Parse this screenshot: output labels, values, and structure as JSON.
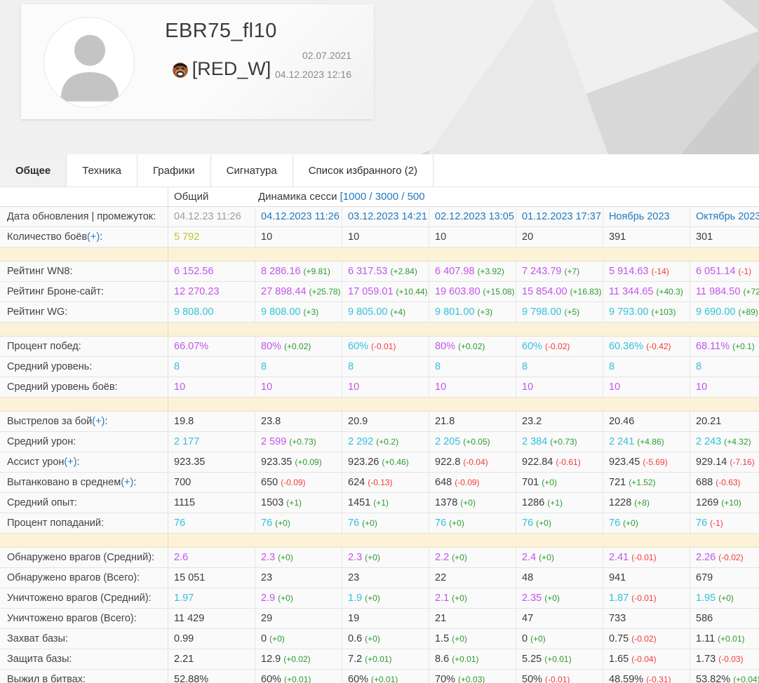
{
  "header": {
    "player_name": "EBR75_fl10",
    "clan_tag": "[RED_W]",
    "clan_emblem_icon": "bear-emblem",
    "registration_date": "02.07.2021",
    "last_update": "04.12.2023 12:16"
  },
  "tabs": [
    {
      "label": "Общее",
      "active": true
    },
    {
      "label": "Техника",
      "active": false
    },
    {
      "label": "Графики",
      "active": false
    },
    {
      "label": "Сигнатура",
      "active": false
    },
    {
      "label": "Список избранного (2)",
      "active": false
    }
  ],
  "table": {
    "overall_label": "Общий",
    "dynamics_label": "Динамика сесси",
    "dynamics_range_link": "[1000 / 3000 / 500",
    "plus_link": "(+)",
    "columns": [
      "Общий",
      "04.12.2023 11:26",
      "03.12.2023 14:21",
      "02.12.2023 13:05",
      "01.12.2023 17:37",
      "Ноябрь 2023",
      "Октябрь 2023"
    ],
    "rows": [
      {
        "label": "Дата обновления | промежуток",
        "cells": [
          {
            "v": "04.12.23 11:26",
            "c": "g"
          },
          {
            "v": "04.12.2023 11:26",
            "c": "b",
            "link": true
          },
          {
            "v": "03.12.2023 14:21",
            "c": "b",
            "link": true
          },
          {
            "v": "02.12.2023 13:05",
            "c": "b",
            "link": true
          },
          {
            "v": "01.12.2023 17:37",
            "c": "b",
            "link": true
          },
          {
            "v": "Ноябрь 2023",
            "c": "b",
            "link": true
          },
          {
            "v": "Октябрь 2023",
            "c": "b",
            "link": true
          }
        ]
      },
      {
        "label": "Количество боёв",
        "plus": true,
        "cells": [
          {
            "v": "5 792",
            "c": "y"
          },
          {
            "v": "10",
            "c": "k"
          },
          {
            "v": "10",
            "c": "k"
          },
          {
            "v": "10",
            "c": "k"
          },
          {
            "v": "20",
            "c": "k"
          },
          {
            "v": "391",
            "c": "k"
          },
          {
            "v": "301",
            "c": "k"
          }
        ]
      },
      {
        "type": "spacer"
      },
      {
        "label": "Рейтинг WN8",
        "cells": [
          {
            "v": "6 152.56",
            "c": "p"
          },
          {
            "v": "8 286.16",
            "c": "p",
            "d": "+9.81",
            "t": "up"
          },
          {
            "v": "6 317.53",
            "c": "p",
            "d": "+2.84",
            "t": "up"
          },
          {
            "v": "6 407.98",
            "c": "p",
            "d": "+3.92",
            "t": "up"
          },
          {
            "v": "7 243.79",
            "c": "p",
            "d": "+7",
            "t": "up"
          },
          {
            "v": "5 914.63",
            "c": "p",
            "d": "-14",
            "t": "dn"
          },
          {
            "v": "6 051.14",
            "c": "p",
            "d": "-1",
            "t": "dn"
          }
        ]
      },
      {
        "label": "Рейтинг Броне-сайт",
        "cells": [
          {
            "v": "12 270.23",
            "c": "p"
          },
          {
            "v": "27 898.44",
            "c": "p",
            "d": "+25.78",
            "t": "up"
          },
          {
            "v": "17 059.01",
            "c": "p",
            "d": "+10.44",
            "t": "up"
          },
          {
            "v": "19 603.80",
            "c": "p",
            "d": "+15.08",
            "t": "up"
          },
          {
            "v": "15 854.00",
            "c": "p",
            "d": "+16.83",
            "t": "up"
          },
          {
            "v": "11 344.65",
            "c": "p",
            "d": "+40.3",
            "t": "up"
          },
          {
            "v": "11 984.50",
            "c": "p",
            "d": "+72",
            "t": "up"
          }
        ]
      },
      {
        "label": "Рейтинг WG",
        "cells": [
          {
            "v": "9 808.00",
            "c": "c"
          },
          {
            "v": "9 808.00",
            "c": "c",
            "d": "+3",
            "t": "up"
          },
          {
            "v": "9 805.00",
            "c": "c",
            "d": "+4",
            "t": "up"
          },
          {
            "v": "9 801.00",
            "c": "c",
            "d": "+3",
            "t": "up"
          },
          {
            "v": "9 798.00",
            "c": "c",
            "d": "+5",
            "t": "up"
          },
          {
            "v": "9 793.00",
            "c": "c",
            "d": "+103",
            "t": "up"
          },
          {
            "v": "9 690.00",
            "c": "c",
            "d": "+89",
            "t": "up"
          }
        ]
      },
      {
        "type": "spacer"
      },
      {
        "label": "Процент побед",
        "cells": [
          {
            "v": "66.07%",
            "c": "p"
          },
          {
            "v": "80%",
            "c": "p",
            "d": "+0.02",
            "t": "up"
          },
          {
            "v": "60%",
            "c": "c",
            "d": "-0.01",
            "t": "dn"
          },
          {
            "v": "80%",
            "c": "p",
            "d": "+0.02",
            "t": "up"
          },
          {
            "v": "60%",
            "c": "c",
            "d": "-0.02",
            "t": "dn"
          },
          {
            "v": "60.36%",
            "c": "c",
            "d": "-0.42",
            "t": "dn"
          },
          {
            "v": "68.11%",
            "c": "p",
            "d": "+0.1",
            "t": "up"
          }
        ]
      },
      {
        "label": "Средний уровень",
        "cells": [
          {
            "v": "8",
            "c": "c"
          },
          {
            "v": "8",
            "c": "c"
          },
          {
            "v": "8",
            "c": "c"
          },
          {
            "v": "8",
            "c": "c"
          },
          {
            "v": "8",
            "c": "c"
          },
          {
            "v": "8",
            "c": "c"
          },
          {
            "v": "8",
            "c": "c"
          }
        ]
      },
      {
        "label": "Средний уровень боёв",
        "cells": [
          {
            "v": "10",
            "c": "p"
          },
          {
            "v": "10",
            "c": "p"
          },
          {
            "v": "10",
            "c": "p"
          },
          {
            "v": "10",
            "c": "p"
          },
          {
            "v": "10",
            "c": "p"
          },
          {
            "v": "10",
            "c": "p"
          },
          {
            "v": "10",
            "c": "p"
          }
        ]
      },
      {
        "type": "spacer"
      },
      {
        "label": "Выстрелов за бой",
        "plus": true,
        "cells": [
          {
            "v": "19.8",
            "c": "k"
          },
          {
            "v": "23.8",
            "c": "k"
          },
          {
            "v": "20.9",
            "c": "k"
          },
          {
            "v": "21.8",
            "c": "k"
          },
          {
            "v": "23.2",
            "c": "k"
          },
          {
            "v": "20.46",
            "c": "k"
          },
          {
            "v": "20.21",
            "c": "k"
          }
        ]
      },
      {
        "label": "Средний урон",
        "cells": [
          {
            "v": "2 177",
            "c": "c"
          },
          {
            "v": "2 599",
            "c": "p",
            "d": "+0.73",
            "t": "up"
          },
          {
            "v": "2 292",
            "c": "c",
            "d": "+0.2",
            "t": "up"
          },
          {
            "v": "2 205",
            "c": "c",
            "d": "+0.05",
            "t": "up"
          },
          {
            "v": "2 384",
            "c": "c",
            "d": "+0.73",
            "t": "up"
          },
          {
            "v": "2 241",
            "c": "c",
            "d": "+4.86",
            "t": "up"
          },
          {
            "v": "2 243",
            "c": "c",
            "d": "+4.32",
            "t": "up"
          }
        ]
      },
      {
        "label": "Ассист урон",
        "plus": true,
        "cells": [
          {
            "v": "923.35",
            "c": "k"
          },
          {
            "v": "923.35",
            "c": "k",
            "d": "+0.09",
            "t": "up"
          },
          {
            "v": "923.26",
            "c": "k",
            "d": "+0.46",
            "t": "up"
          },
          {
            "v": "922.8",
            "c": "k",
            "d": "-0.04",
            "t": "dn"
          },
          {
            "v": "922.84",
            "c": "k",
            "d": "-0.61",
            "t": "dn"
          },
          {
            "v": "923.45",
            "c": "k",
            "d": "-5.69",
            "t": "dn"
          },
          {
            "v": "929.14",
            "c": "k",
            "d": "-7.16",
            "t": "dn"
          }
        ]
      },
      {
        "label": "Вытанковано в среднем",
        "plus": true,
        "cells": [
          {
            "v": "700",
            "c": "k"
          },
          {
            "v": "650",
            "c": "k",
            "d": "-0.09",
            "t": "dn"
          },
          {
            "v": "624",
            "c": "k",
            "d": "-0.13",
            "t": "dn"
          },
          {
            "v": "648",
            "c": "k",
            "d": "-0.09",
            "t": "dn"
          },
          {
            "v": "701",
            "c": "k",
            "d": "+0",
            "t": "up"
          },
          {
            "v": "721",
            "c": "k",
            "d": "+1.52",
            "t": "up"
          },
          {
            "v": "688",
            "c": "k",
            "d": "-0.63",
            "t": "dn"
          }
        ]
      },
      {
        "label": "Средний опыт",
        "cells": [
          {
            "v": "1115",
            "c": "k"
          },
          {
            "v": "1503",
            "c": "k",
            "d": "+1",
            "t": "up"
          },
          {
            "v": "1451",
            "c": "k",
            "d": "+1",
            "t": "up"
          },
          {
            "v": "1378",
            "c": "k",
            "d": "+0",
            "t": "up"
          },
          {
            "v": "1286",
            "c": "k",
            "d": "+1",
            "t": "up"
          },
          {
            "v": "1228",
            "c": "k",
            "d": "+8",
            "t": "up"
          },
          {
            "v": "1269",
            "c": "k",
            "d": "+10",
            "t": "up"
          }
        ]
      },
      {
        "label": "Процент попаданий",
        "cells": [
          {
            "v": "76",
            "c": "c"
          },
          {
            "v": "76",
            "c": "c",
            "d": "+0",
            "t": "up"
          },
          {
            "v": "76",
            "c": "c",
            "d": "+0",
            "t": "up"
          },
          {
            "v": "76",
            "c": "c",
            "d": "+0",
            "t": "up"
          },
          {
            "v": "76",
            "c": "c",
            "d": "+0",
            "t": "up"
          },
          {
            "v": "76",
            "c": "c",
            "d": "+0",
            "t": "up"
          },
          {
            "v": "76",
            "c": "c",
            "d": "-1",
            "t": "dn"
          }
        ]
      },
      {
        "type": "spacer"
      },
      {
        "label": "Обнаружено врагов (Средний)",
        "cells": [
          {
            "v": "2.6",
            "c": "p"
          },
          {
            "v": "2.3",
            "c": "p",
            "d": "+0",
            "t": "up"
          },
          {
            "v": "2.3",
            "c": "p",
            "d": "+0",
            "t": "up"
          },
          {
            "v": "2.2",
            "c": "p",
            "d": "+0",
            "t": "up"
          },
          {
            "v": "2.4",
            "c": "p",
            "d": "+0",
            "t": "up"
          },
          {
            "v": "2.41",
            "c": "p",
            "d": "-0.01",
            "t": "dn"
          },
          {
            "v": "2.26",
            "c": "p",
            "d": "-0.02",
            "t": "dn"
          }
        ]
      },
      {
        "label": "Обнаружено врагов (Всего)",
        "cells": [
          {
            "v": "15 051",
            "c": "k"
          },
          {
            "v": "23",
            "c": "k"
          },
          {
            "v": "23",
            "c": "k"
          },
          {
            "v": "22",
            "c": "k"
          },
          {
            "v": "48",
            "c": "k"
          },
          {
            "v": "941",
            "c": "k"
          },
          {
            "v": "679",
            "c": "k"
          }
        ]
      },
      {
        "label": "Уничтожено врагов (Средний)",
        "cells": [
          {
            "v": "1.97",
            "c": "c"
          },
          {
            "v": "2.9",
            "c": "p",
            "d": "+0",
            "t": "up"
          },
          {
            "v": "1.9",
            "c": "c",
            "d": "+0",
            "t": "up"
          },
          {
            "v": "2.1",
            "c": "p",
            "d": "+0",
            "t": "up"
          },
          {
            "v": "2.35",
            "c": "p",
            "d": "+0",
            "t": "up"
          },
          {
            "v": "1.87",
            "c": "c",
            "d": "-0.01",
            "t": "dn"
          },
          {
            "v": "1.95",
            "c": "c",
            "d": "+0",
            "t": "up"
          }
        ]
      },
      {
        "label": "Уничтожено врагов (Всего)",
        "cells": [
          {
            "v": "11 429",
            "c": "k"
          },
          {
            "v": "29",
            "c": "k"
          },
          {
            "v": "19",
            "c": "k"
          },
          {
            "v": "21",
            "c": "k"
          },
          {
            "v": "47",
            "c": "k"
          },
          {
            "v": "733",
            "c": "k"
          },
          {
            "v": "586",
            "c": "k"
          }
        ]
      },
      {
        "label": "Захват базы",
        "cells": [
          {
            "v": "0.99",
            "c": "k"
          },
          {
            "v": "0",
            "c": "k",
            "d": "+0",
            "t": "up"
          },
          {
            "v": "0.6",
            "c": "k",
            "d": "+0",
            "t": "up"
          },
          {
            "v": "1.5",
            "c": "k",
            "d": "+0",
            "t": "up"
          },
          {
            "v": "0",
            "c": "k",
            "d": "+0",
            "t": "up"
          },
          {
            "v": "0.75",
            "c": "k",
            "d": "-0.02",
            "t": "dn"
          },
          {
            "v": "1.11",
            "c": "k",
            "d": "+0.01",
            "t": "up"
          }
        ]
      },
      {
        "label": "Защита базы",
        "cells": [
          {
            "v": "2.21",
            "c": "k"
          },
          {
            "v": "12.9",
            "c": "k",
            "d": "+0.02",
            "t": "up"
          },
          {
            "v": "7.2",
            "c": "k",
            "d": "+0.01",
            "t": "up"
          },
          {
            "v": "8.6",
            "c": "k",
            "d": "+0.01",
            "t": "up"
          },
          {
            "v": "5.25",
            "c": "k",
            "d": "+0.01",
            "t": "up"
          },
          {
            "v": "1.65",
            "c": "k",
            "d": "-0.04",
            "t": "dn"
          },
          {
            "v": "1.73",
            "c": "k",
            "d": "-0.03",
            "t": "dn"
          }
        ]
      },
      {
        "label": "Выжил в битвах",
        "cells": [
          {
            "v": "52.88%",
            "c": "k"
          },
          {
            "v": "60%",
            "c": "k",
            "d": "+0.01",
            "t": "up"
          },
          {
            "v": "60%",
            "c": "k",
            "d": "+0.01",
            "t": "up"
          },
          {
            "v": "70%",
            "c": "k",
            "d": "+0.03",
            "t": "up"
          },
          {
            "v": "50%",
            "c": "k",
            "d": "-0.01",
            "t": "dn"
          },
          {
            "v": "48.59%",
            "c": "k",
            "d": "-0.31",
            "t": "dn"
          },
          {
            "v": "53.82%",
            "c": "k",
            "d": "+0.04",
            "t": "up"
          }
        ]
      }
    ]
  },
  "colors": {
    "blue_link": "#2279c0",
    "purple": "#c453ec",
    "cyan": "#33c1dc",
    "green_delta": "#2c9b2f",
    "red_delta": "#f23c3c",
    "yellow_total": "#bfc62f",
    "gray_muted": "#9e9e9e",
    "spacer_bg": "#fbf2d7"
  }
}
